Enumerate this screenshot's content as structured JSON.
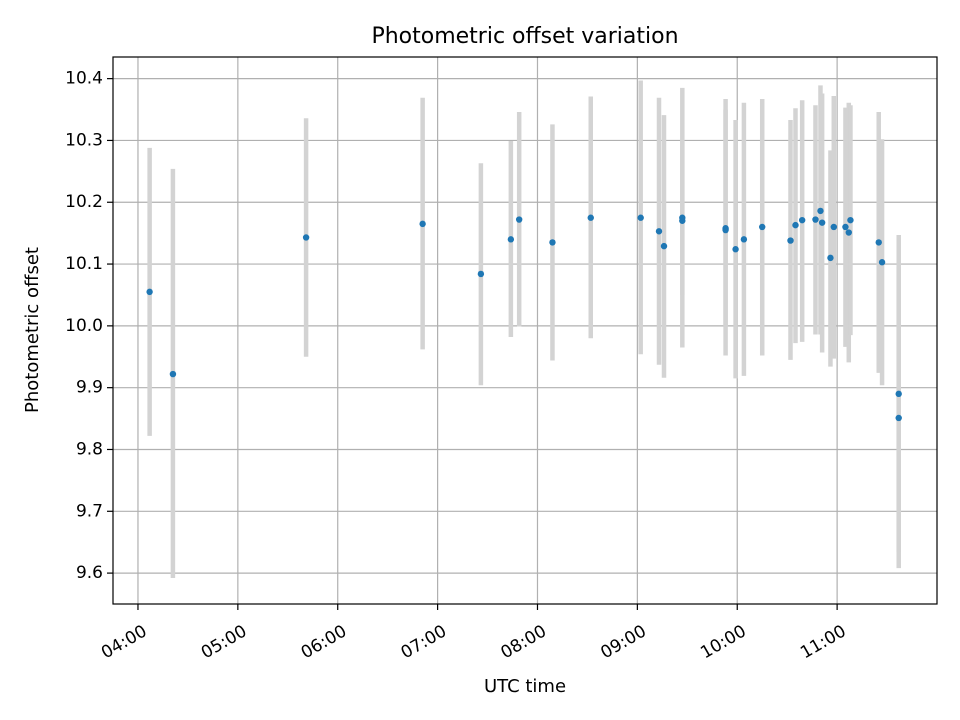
{
  "chart_data": {
    "type": "scatter",
    "title": "Photometric offset variation",
    "xlabel": "UTC time",
    "ylabel": "Photometric offset",
    "xlim": [
      "03:45",
      "12:00"
    ],
    "ylim": [
      9.55,
      10.435
    ],
    "grid": true,
    "x_ticks": [
      "04:00",
      "05:00",
      "06:00",
      "07:00",
      "08:00",
      "09:00",
      "10:00",
      "11:00"
    ],
    "y_ticks": [
      "9.6",
      "9.7",
      "9.8",
      "9.9",
      "10.0",
      "10.1",
      "10.2",
      "10.3",
      "10.4"
    ],
    "colors": {
      "points": "#1f77b4",
      "error_bars": "#d3d3d3",
      "grid": "#b0b0b0"
    },
    "points": [
      {
        "x": "04:07",
        "y": 10.055,
        "low": 9.822,
        "high": 10.288
      },
      {
        "x": "04:21",
        "y": 9.922,
        "low": 9.592,
        "high": 10.254
      },
      {
        "x": "05:41",
        "y": 10.143,
        "low": 9.95,
        "high": 10.336
      },
      {
        "x": "06:51",
        "y": 10.165,
        "low": 9.962,
        "high": 10.369
      },
      {
        "x": "07:26",
        "y": 10.084,
        "low": 9.904,
        "high": 10.263
      },
      {
        "x": "07:44",
        "y": 10.14,
        "low": 9.982,
        "high": 10.299
      },
      {
        "x": "07:49",
        "y": 10.172,
        "low": 9.999,
        "high": 10.346
      },
      {
        "x": "08:09",
        "y": 10.135,
        "low": 9.944,
        "high": 10.326
      },
      {
        "x": "08:32",
        "y": 10.175,
        "low": 9.98,
        "high": 10.371
      },
      {
        "x": "09:02",
        "y": 10.175,
        "low": 9.954,
        "high": 10.397
      },
      {
        "x": "09:13",
        "y": 10.153,
        "low": 9.937,
        "high": 10.369
      },
      {
        "x": "09:16",
        "y": 10.129,
        "low": 9.916,
        "high": 10.341
      },
      {
        "x": "09:27",
        "y": 10.17,
        "low": 9.965,
        "high": 10.385
      },
      {
        "x": "09:27",
        "y": 10.175,
        "low": 10.05,
        "high": 10.3
      },
      {
        "x": "09:53",
        "y": 10.158,
        "low": 9.952,
        "high": 10.367
      },
      {
        "x": "09:53",
        "y": 10.155,
        "low": 10.0,
        "high": 10.35
      },
      {
        "x": "09:59",
        "y": 10.124,
        "low": 9.915,
        "high": 10.333
      },
      {
        "x": "10:04",
        "y": 10.14,
        "low": 9.919,
        "high": 10.361
      },
      {
        "x": "10:15",
        "y": 10.16,
        "low": 9.952,
        "high": 10.367
      },
      {
        "x": "10:32",
        "y": 10.138,
        "low": 9.945,
        "high": 10.333
      },
      {
        "x": "10:35",
        "y": 10.163,
        "low": 9.972,
        "high": 10.352
      },
      {
        "x": "10:39",
        "y": 10.171,
        "low": 9.974,
        "high": 10.365
      },
      {
        "x": "10:47",
        "y": 10.172,
        "low": 9.986,
        "high": 10.357
      },
      {
        "x": "10:50",
        "y": 10.186,
        "low": 9.986,
        "high": 10.389
      },
      {
        "x": "10:51",
        "y": 10.167,
        "low": 9.957,
        "high": 10.376
      },
      {
        "x": "10:56",
        "y": 10.11,
        "low": 9.934,
        "high": 10.284
      },
      {
        "x": "10:58",
        "y": 10.16,
        "low": 9.947,
        "high": 10.372
      },
      {
        "x": "11:05",
        "y": 10.16,
        "low": 9.966,
        "high": 10.353
      },
      {
        "x": "11:07",
        "y": 10.151,
        "low": 9.941,
        "high": 10.361
      },
      {
        "x": "11:08",
        "y": 10.171,
        "low": 9.985,
        "high": 10.357
      },
      {
        "x": "11:25",
        "y": 10.135,
        "low": 9.924,
        "high": 10.346
      },
      {
        "x": "11:27",
        "y": 10.103,
        "low": 9.904,
        "high": 10.302
      },
      {
        "x": "11:37",
        "y": 9.89,
        "low": 9.634,
        "high": 10.147
      },
      {
        "x": "11:37",
        "y": 9.851,
        "low": 9.608,
        "high": 10.095
      }
    ]
  }
}
